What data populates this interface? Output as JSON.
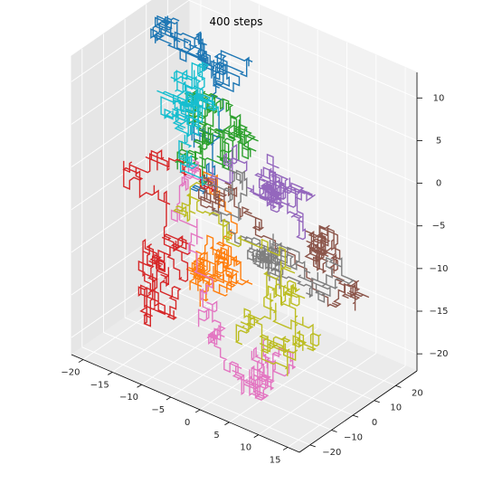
{
  "chart_data": {
    "type": "line3d",
    "title": "400 steps",
    "x_axis": {
      "range": [
        -22,
        17
      ],
      "ticks": [
        -20,
        -15,
        -10,
        -5,
        0,
        5,
        10,
        15
      ]
    },
    "y_axis": {
      "range": [
        -25,
        30
      ],
      "ticks": [
        -20,
        -10,
        0,
        10,
        20
      ]
    },
    "z_axis": {
      "range": [
        -22,
        13
      ],
      "ticks": [
        -20,
        -15,
        -10,
        -5,
        0,
        5,
        10
      ]
    },
    "grid": true,
    "legend": "none",
    "series": [
      {
        "color": "#1f77b4",
        "start": [
          -8,
          -2,
          -1
        ],
        "end": [
          -12,
          8,
          11
        ]
      },
      {
        "color": "#ff7f0e",
        "start": [
          -8,
          -2,
          -1
        ],
        "end": [
          -4,
          -14,
          -9
        ]
      },
      {
        "color": "#2ca02c",
        "start": [
          -8,
          -2,
          -1
        ],
        "end": [
          -6,
          2,
          4
        ]
      },
      {
        "color": "#d62728",
        "start": [
          -8,
          -2,
          -1
        ],
        "end": [
          -19,
          2,
          -19
        ]
      },
      {
        "color": "#9467bd",
        "start": [
          -8,
          -2,
          -1
        ],
        "end": [
          2,
          4,
          0
        ]
      },
      {
        "color": "#8c564b",
        "start": [
          -8,
          -2,
          -1
        ],
        "end": [
          9,
          8,
          -7
        ]
      },
      {
        "color": "#e377c2",
        "start": [
          -8,
          -2,
          -1
        ],
        "end": [
          4,
          -10,
          -20
        ]
      },
      {
        "color": "#7f7f7f",
        "start": [
          -8,
          -2,
          -1
        ],
        "end": [
          3,
          2,
          -8
        ]
      },
      {
        "color": "#bcbd22",
        "start": [
          -8,
          -2,
          -1
        ],
        "end": [
          6,
          -6,
          -16
        ]
      },
      {
        "color": "#17becf",
        "start": [
          -8,
          -2,
          -1
        ],
        "end": [
          -16,
          16,
          2
        ]
      }
    ]
  }
}
